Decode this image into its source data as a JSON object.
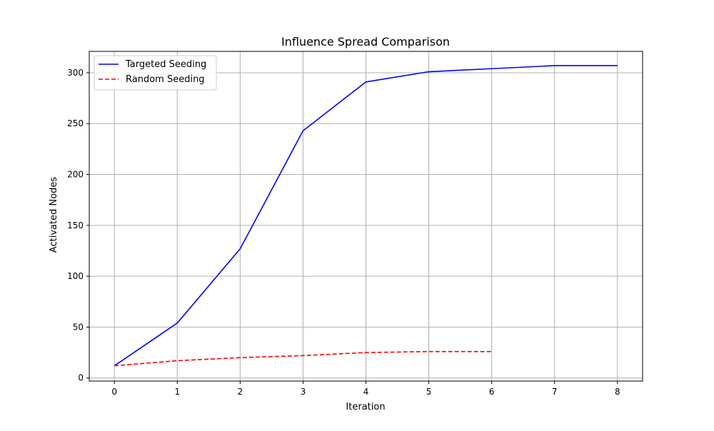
{
  "chart_data": {
    "type": "line",
    "title": "Influence Spread Comparison",
    "xlabel": "Iteration",
    "ylabel": "Activated Nodes",
    "xlim": [
      -0.4,
      8.4
    ],
    "ylim": [
      -3,
      321
    ],
    "xticks": [
      0,
      1,
      2,
      3,
      4,
      5,
      6,
      7,
      8
    ],
    "yticks": [
      0,
      50,
      100,
      150,
      200,
      250,
      300
    ],
    "grid": true,
    "legend_position": "upper-left",
    "series": [
      {
        "name": "Targeted Seeding",
        "color": "#0000ff",
        "linestyle": "solid",
        "x": [
          0,
          1,
          2,
          3,
          4,
          5,
          6,
          7,
          8
        ],
        "y": [
          12,
          54,
          127,
          243,
          291,
          301,
          304,
          307,
          307
        ]
      },
      {
        "name": "Random Seeding",
        "color": "#ff0000",
        "linestyle": "dashed",
        "x": [
          0,
          1,
          2,
          3,
          4,
          5,
          6
        ],
        "y": [
          12,
          17,
          20,
          22,
          25,
          26,
          26
        ]
      }
    ]
  }
}
